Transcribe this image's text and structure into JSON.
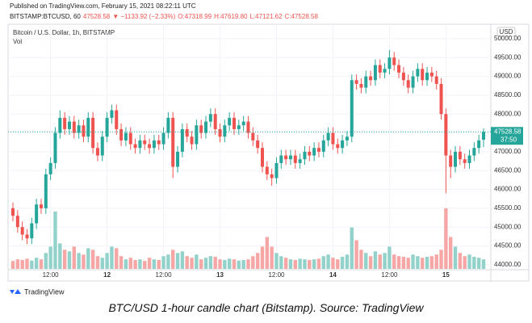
{
  "header": {
    "published": "Published on TradingView.com, February 15, 2021 08:22:11 UTC",
    "symbol": "BITSTAMP:BTCUSD, 60",
    "price": "47528.58",
    "change": "▼ −1133.92 (−2.33%)",
    "o": "O:47318.99",
    "h": "H:47619.80",
    "l": "L:47121.62",
    "c": "C:47528.58"
  },
  "chart_data": {
    "type": "candlestick",
    "title": "Bitcoin / U.S. Dollar, 1h, BITSTAMP",
    "volume_label": "Vol",
    "currency": "USD",
    "countdown": "37:50",
    "up_color": "#26a69a",
    "down_color": "#ef5350",
    "up_volume_color": "#93d2ca",
    "down_volume_color": "#f5a6a5",
    "grid": true,
    "categories": [
      null,
      null,
      null,
      null,
      null,
      null,
      null,
      null,
      "12:00",
      null,
      null,
      null,
      null,
      null,
      null,
      null,
      null,
      null,
      null,
      null,
      "12",
      null,
      null,
      null,
      null,
      null,
      null,
      null,
      null,
      null,
      null,
      null,
      "12:00",
      null,
      null,
      null,
      null,
      null,
      null,
      null,
      null,
      null,
      null,
      null,
      "13",
      null,
      null,
      null,
      null,
      null,
      null,
      null,
      null,
      null,
      null,
      null,
      "12:00",
      null,
      null,
      null,
      null,
      null,
      null,
      null,
      null,
      null,
      null,
      null,
      "14",
      null,
      null,
      null,
      null,
      null,
      null,
      null,
      null,
      null,
      null,
      null,
      "12:00",
      null,
      null,
      null,
      null,
      null,
      null,
      null,
      null,
      null,
      null,
      null,
      "15",
      null,
      null,
      null,
      null,
      null,
      null,
      null,
      null
    ],
    "open": [
      45500,
      45300,
      45000,
      44800,
      44700,
      45100,
      45600,
      45500,
      46400,
      46700,
      47500,
      47900,
      47600,
      47800,
      47500,
      47700,
      47400,
      47900,
      47100,
      46900,
      47400,
      47900,
      48100,
      47600,
      47300,
      47500,
      47200,
      47100,
      47300,
      47200,
      47100,
      47300,
      47200,
      47500,
      47900,
      46600,
      47000,
      47600,
      47400,
      47200,
      47700,
      47500,
      47800,
      48000,
      47600,
      47400,
      47700,
      47900,
      47600,
      47700,
      47800,
      47500,
      47300,
      47100,
      46600,
      46400,
      46300,
      46700,
      46900,
      46800,
      46900,
      46700,
      46800,
      47000,
      46900,
      47100,
      47000,
      47300,
      47500,
      47200,
      47100,
      47300,
      47400,
      48900,
      48800,
      48700,
      49000,
      48900,
      49300,
      49100,
      49200,
      49500,
      49300,
      49100,
      48900,
      48700,
      49000,
      49200,
      48900,
      49100,
      49000,
      48800,
      48000,
      46900,
      46600,
      47000,
      46800,
      46700,
      46900,
      47100,
      47318.99
    ],
    "high": [
      45650,
      45450,
      45150,
      44950,
      45250,
      45750,
      45750,
      46550,
      46850,
      47650,
      48100,
      48050,
      47950,
      47950,
      47850,
      47850,
      48050,
      48050,
      47250,
      47550,
      48050,
      48250,
      48250,
      47750,
      47650,
      47650,
      47350,
      47450,
      47450,
      47350,
      47450,
      47450,
      47650,
      48050,
      48050,
      47150,
      47750,
      47750,
      47550,
      47850,
      47850,
      47950,
      48150,
      48150,
      47750,
      47850,
      48050,
      48050,
      47850,
      47950,
      47950,
      47650,
      47450,
      47250,
      46750,
      46550,
      46850,
      47050,
      47050,
      47050,
      47050,
      46950,
      47150,
      47150,
      47250,
      47250,
      47450,
      47650,
      47650,
      47350,
      47450,
      47550,
      49050,
      49050,
      48950,
      49150,
      49150,
      49450,
      49450,
      49350,
      49700,
      49650,
      49450,
      49250,
      49050,
      49150,
      49350,
      49350,
      49250,
      49250,
      49150,
      48950,
      48150,
      47050,
      47150,
      47150,
      46950,
      47050,
      47250,
      47450,
      47619.8
    ],
    "low": [
      45150,
      44850,
      44650,
      44550,
      44550,
      44950,
      45350,
      45350,
      46250,
      46550,
      47350,
      47450,
      47450,
      47350,
      47350,
      47250,
      47250,
      46950,
      46750,
      46750,
      47250,
      47750,
      47450,
      47150,
      47150,
      47050,
      46950,
      46950,
      47050,
      46950,
      46950,
      47050,
      47050,
      47350,
      46300,
      46450,
      46850,
      47250,
      47050,
      47050,
      47350,
      47350,
      47650,
      47450,
      47250,
      47250,
      47550,
      47450,
      47450,
      47550,
      47350,
      47150,
      46950,
      46450,
      46250,
      46100,
      46150,
      46550,
      46650,
      46650,
      46550,
      46550,
      46650,
      46750,
      46750,
      46850,
      46850,
      47150,
      47050,
      46950,
      46950,
      47150,
      47250,
      48650,
      48550,
      48550,
      48750,
      48750,
      48950,
      48950,
      49050,
      49150,
      48950,
      48750,
      48550,
      48550,
      48850,
      48750,
      48750,
      48850,
      48650,
      47850,
      45900,
      46300,
      46450,
      46650,
      46550,
      46550,
      46750,
      46950,
      47121.62
    ],
    "close": [
      45300,
      45000,
      44800,
      44700,
      45100,
      45600,
      45500,
      46400,
      46700,
      47500,
      47900,
      47600,
      47800,
      47500,
      47700,
      47400,
      47900,
      47100,
      46900,
      47400,
      47900,
      48100,
      47600,
      47300,
      47500,
      47200,
      47100,
      47300,
      47200,
      47100,
      47300,
      47200,
      47500,
      47900,
      46600,
      47000,
      47600,
      47400,
      47200,
      47700,
      47500,
      47800,
      48000,
      47600,
      47400,
      47700,
      47900,
      47600,
      47700,
      47800,
      47500,
      47300,
      47100,
      46600,
      46400,
      46300,
      46700,
      46900,
      46800,
      46900,
      46700,
      46800,
      47000,
      46900,
      47100,
      47000,
      47300,
      47500,
      47200,
      47100,
      47300,
      47400,
      48900,
      48800,
      48700,
      49000,
      48900,
      49300,
      49100,
      49200,
      49500,
      49300,
      49100,
      48900,
      48700,
      49000,
      49200,
      48900,
      49100,
      49000,
      48800,
      48000,
      46900,
      46600,
      47000,
      46800,
      46700,
      46900,
      47100,
      47300,
      47528.58
    ],
    "volume": [
      250,
      300,
      280,
      320,
      260,
      350,
      300,
      500,
      700,
      1800,
      800,
      600,
      550,
      700,
      500,
      450,
      650,
      600,
      400,
      350,
      500,
      700,
      650,
      400,
      300,
      350,
      280,
      300,
      250,
      350,
      300,
      280,
      400,
      450,
      600,
      500,
      550,
      400,
      350,
      450,
      300,
      350,
      400,
      380,
      300,
      280,
      320,
      300,
      260,
      280,
      300,
      400,
      500,
      700,
      1000,
      700,
      500,
      400,
      350,
      300,
      280,
      320,
      300,
      280,
      300,
      320,
      400,
      450,
      350,
      300,
      380,
      450,
      1300,
      900,
      600,
      500,
      400,
      550,
      450,
      500,
      700,
      450,
      400,
      380,
      350,
      450,
      400,
      350,
      380,
      400,
      450,
      600,
      1900,
      1000,
      700,
      500,
      400,
      450,
      380,
      350,
      300
    ],
    "ylim": [
      43890,
      50170
    ],
    "yticks": [
      {
        "value": 44000,
        "label": "44000.00"
      },
      {
        "value": 44500,
        "label": "44500.00"
      },
      {
        "value": 45000,
        "label": "45000.00"
      },
      {
        "value": 45500,
        "label": "45500.00"
      },
      {
        "value": 46000,
        "label": "46000.00"
      },
      {
        "value": 46500,
        "label": "46500.00"
      },
      {
        "value": 47000,
        "label": "47000.00"
      },
      {
        "value": 47500,
        "label": "47500.00"
      },
      {
        "value": 48000,
        "label": "48000.00"
      },
      {
        "value": 48500,
        "label": "48500.00"
      },
      {
        "value": 49000,
        "label": "49000.00"
      },
      {
        "value": 49500,
        "label": "49500.00"
      },
      {
        "value": 50000,
        "label": "50000.00"
      }
    ]
  },
  "footer": {
    "logo": "TradingView",
    "caption": "BTC/USD 1-hour candle chart (Bitstamp). Source: TradingView"
  }
}
